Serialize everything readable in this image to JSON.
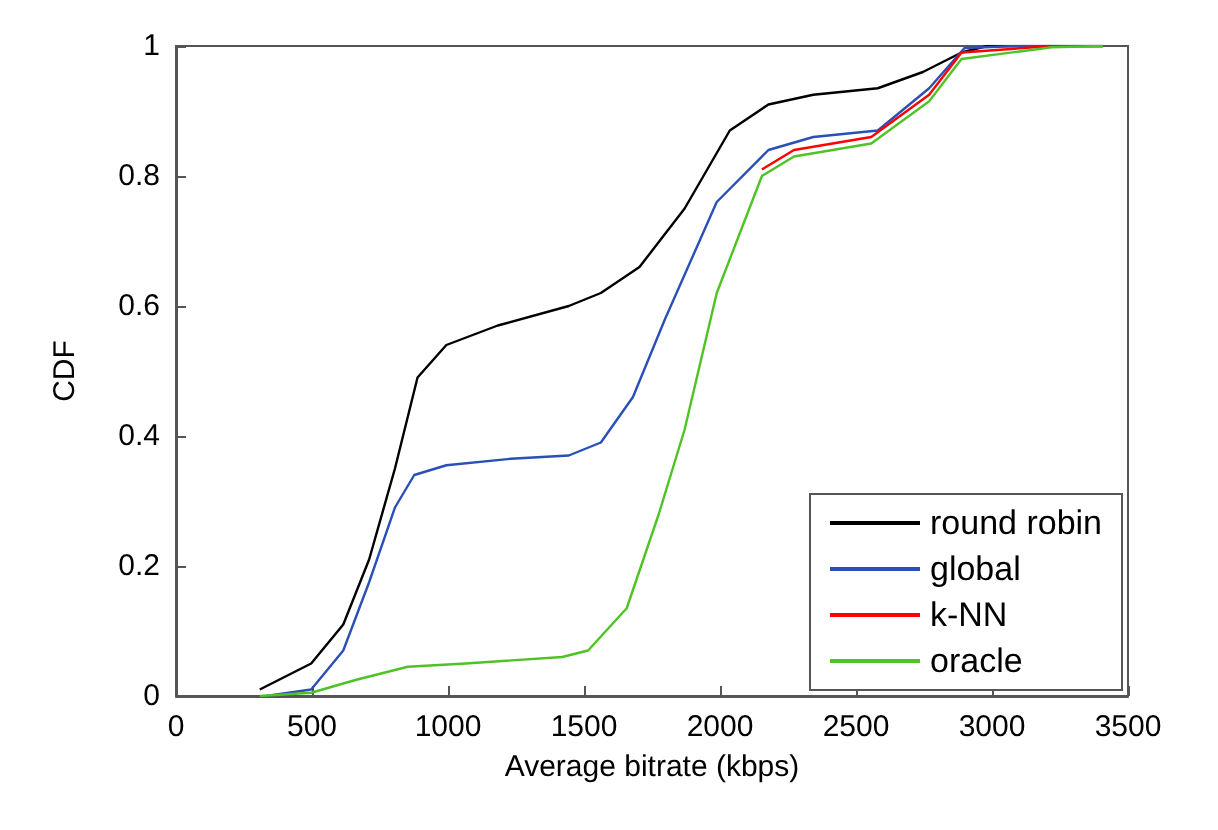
{
  "chart_data": {
    "type": "line",
    "xlabel": "Average bitrate (kbps)",
    "ylabel": "CDF",
    "xlim": [
      0,
      3500
    ],
    "xticks": [
      0,
      500,
      1000,
      1500,
      2000,
      2500,
      3000,
      3500
    ],
    "ylim": [
      0,
      1
    ],
    "yticks": [
      0,
      0.2,
      0.4,
      0.6,
      0.8,
      1
    ],
    "grid": false,
    "legend": "bottom right",
    "marker": "none",
    "line_style": "solid",
    "series": [
      {
        "name": "round robin",
        "color": "#000000",
        "x": [
          308,
          497,
          615,
          710,
          805,
          888,
          994,
          1183,
          1444,
          1562,
          1704,
          1870,
          2036,
          2178,
          2343,
          2580,
          2746,
          2888,
          2982,
          3408
        ],
        "values": [
          0.01,
          0.05,
          0.11,
          0.21,
          0.35,
          0.49,
          0.54,
          0.57,
          0.6,
          0.62,
          0.66,
          0.75,
          0.87,
          0.91,
          0.925,
          0.935,
          0.96,
          0.99,
          1,
          1
        ]
      },
      {
        "name": "global",
        "color": "#2a4fb5",
        "x": [
          331,
          497,
          615,
          710,
          805,
          876,
          994,
          1231,
          1444,
          1562,
          1680,
          1798,
          1988,
          2178,
          2343,
          2580,
          2769,
          2899,
          3100,
          3408
        ],
        "values": [
          0,
          0.01,
          0.07,
          0.175,
          0.29,
          0.34,
          0.355,
          0.365,
          0.37,
          0.39,
          0.46,
          0.58,
          0.76,
          0.84,
          0.86,
          0.87,
          0.935,
          0.997,
          1,
          1
        ]
      },
      {
        "name": "k-NN",
        "color": "#ff0000",
        "x": [
          2154,
          2272,
          2556,
          2769,
          2888,
          3219
        ],
        "values": [
          0.81,
          0.84,
          0.86,
          0.925,
          0.99,
          1
        ]
      },
      {
        "name": "oracle",
        "color": "#4fc326",
        "x": [
          308,
          497,
          663,
          852,
          1065,
          1420,
          1515,
          1657,
          1775,
          1870,
          1988,
          2154,
          2272,
          2556,
          2769,
          2888,
          3219,
          3408
        ],
        "values": [
          0,
          0.005,
          0.025,
          0.045,
          0.05,
          0.06,
          0.07,
          0.135,
          0.28,
          0.41,
          0.62,
          0.8,
          0.83,
          0.85,
          0.915,
          0.98,
          0.998,
          1
        ]
      }
    ]
  }
}
